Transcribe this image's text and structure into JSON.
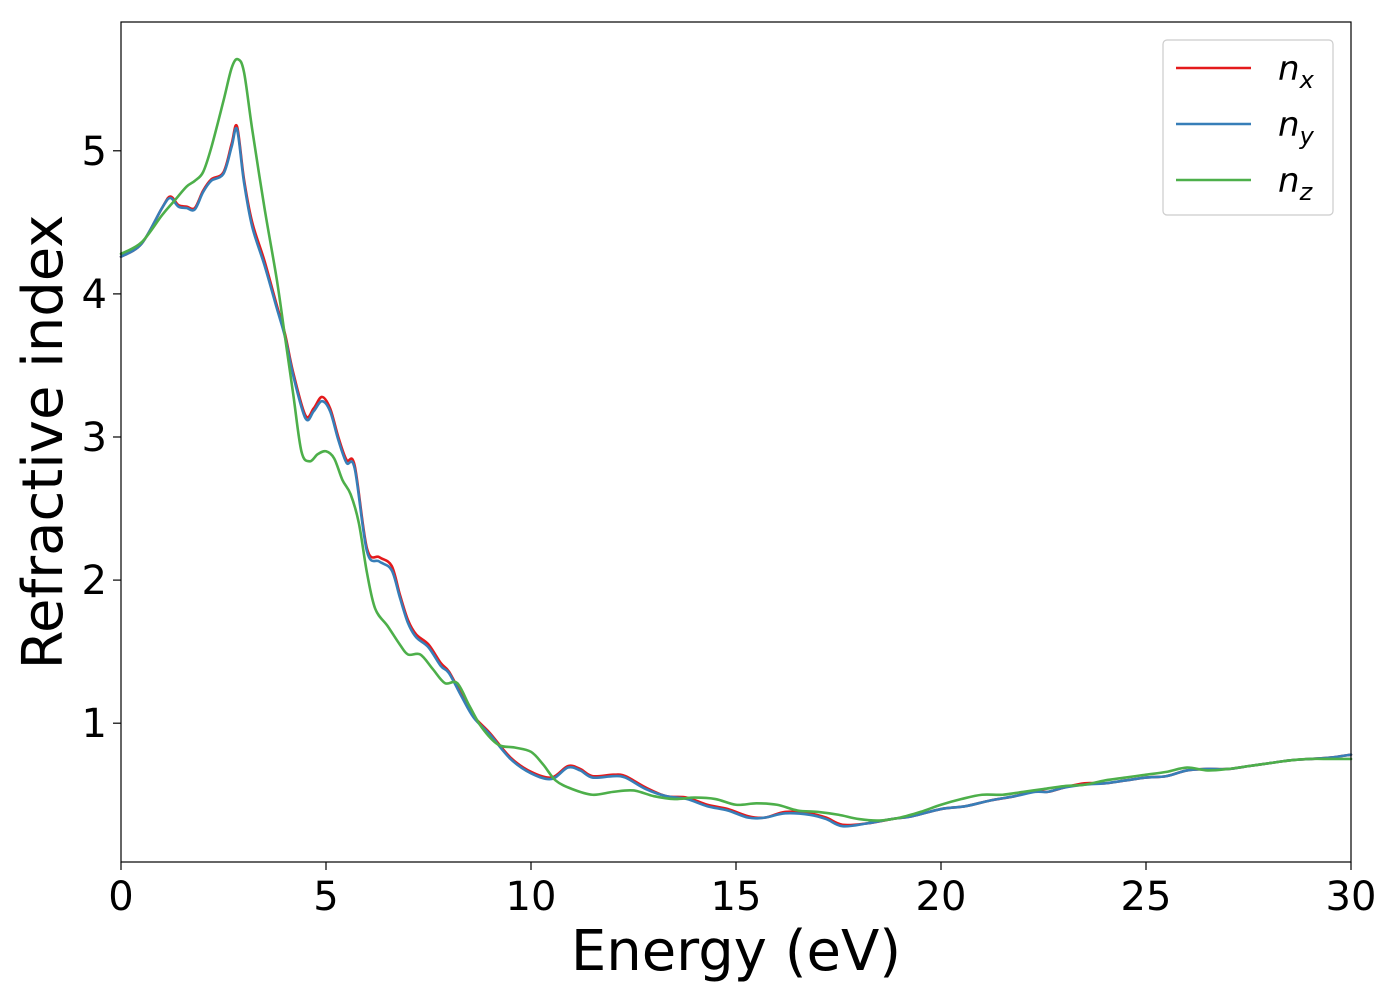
{
  "chart_data": {
    "type": "line",
    "title": "",
    "xlabel": "Energy (eV)",
    "ylabel": "Refractive index",
    "xlim": [
      0,
      30
    ],
    "ylim": [
      0.03,
      5.9
    ],
    "xticks": [
      0,
      5,
      10,
      15,
      20,
      25,
      30
    ],
    "yticks": [
      1,
      2,
      3,
      4,
      5
    ],
    "grid": false,
    "legend_position": "top-right",
    "series": [
      {
        "name": "n",
        "subscript": "x",
        "color": "#e41a1c",
        "x": [
          0,
          0.5,
          1.0,
          1.2,
          1.4,
          1.6,
          1.8,
          2.0,
          2.2,
          2.5,
          2.7,
          2.83,
          3.0,
          3.2,
          3.5,
          3.8,
          4.0,
          4.2,
          4.5,
          4.7,
          4.9,
          5.1,
          5.3,
          5.5,
          5.7,
          6.0,
          6.3,
          6.6,
          6.8,
          7.0,
          7.2,
          7.5,
          7.8,
          8.0,
          8.3,
          8.6,
          9.0,
          9.5,
          10.0,
          10.5,
          10.9,
          11.2,
          11.5,
          12.0,
          12.3,
          12.8,
          13.3,
          13.8,
          14.3,
          14.8,
          15.3,
          15.7,
          16.2,
          16.8,
          17.2,
          17.6,
          18.2,
          18.8,
          19.3,
          20.0,
          20.6,
          21.2,
          21.8,
          22.3,
          22.6,
          23.0,
          23.5,
          24.0,
          24.5,
          25.0,
          25.5,
          26.0,
          26.5,
          27.0,
          27.5,
          28.0,
          28.5,
          29.0,
          29.5,
          30.0
        ],
        "values": [
          4.26,
          4.35,
          4.6,
          4.68,
          4.62,
          4.61,
          4.6,
          4.72,
          4.8,
          4.85,
          5.05,
          5.17,
          4.8,
          4.5,
          4.23,
          3.92,
          3.72,
          3.45,
          3.15,
          3.2,
          3.28,
          3.2,
          3.0,
          2.84,
          2.8,
          2.22,
          2.16,
          2.1,
          1.9,
          1.72,
          1.62,
          1.55,
          1.42,
          1.36,
          1.2,
          1.05,
          0.93,
          0.76,
          0.66,
          0.62,
          0.7,
          0.68,
          0.63,
          0.64,
          0.63,
          0.55,
          0.49,
          0.48,
          0.43,
          0.4,
          0.35,
          0.34,
          0.38,
          0.37,
          0.34,
          0.29,
          0.3,
          0.33,
          0.35,
          0.4,
          0.42,
          0.46,
          0.49,
          0.53,
          0.52,
          0.55,
          0.58,
          0.58,
          0.6,
          0.62,
          0.63,
          0.67,
          0.68,
          0.68,
          0.7,
          0.72,
          0.74,
          0.75,
          0.76,
          0.78
        ]
      },
      {
        "name": "n",
        "subscript": "y",
        "color": "#377eb8",
        "x": [
          0,
          0.5,
          1.0,
          1.2,
          1.4,
          1.6,
          1.8,
          2.0,
          2.2,
          2.5,
          2.7,
          2.83,
          3.0,
          3.2,
          3.5,
          3.8,
          4.0,
          4.2,
          4.5,
          4.7,
          4.9,
          5.1,
          5.3,
          5.5,
          5.7,
          6.0,
          6.3,
          6.6,
          6.8,
          7.0,
          7.2,
          7.5,
          7.8,
          8.0,
          8.3,
          8.6,
          9.0,
          9.5,
          10.0,
          10.5,
          10.9,
          11.2,
          11.5,
          12.0,
          12.3,
          12.8,
          13.3,
          13.8,
          14.3,
          14.8,
          15.3,
          15.7,
          16.2,
          16.8,
          17.2,
          17.6,
          18.2,
          18.8,
          19.3,
          20.0,
          20.6,
          21.2,
          21.8,
          22.3,
          22.6,
          23.0,
          23.5,
          24.0,
          24.5,
          25.0,
          25.5,
          26.0,
          26.5,
          27.0,
          27.5,
          28.0,
          28.5,
          29.0,
          29.5,
          30.0
        ],
        "values": [
          4.26,
          4.35,
          4.6,
          4.67,
          4.61,
          4.6,
          4.59,
          4.71,
          4.79,
          4.84,
          5.03,
          5.15,
          4.78,
          4.47,
          4.2,
          3.9,
          3.7,
          3.43,
          3.13,
          3.18,
          3.25,
          3.18,
          2.98,
          2.82,
          2.78,
          2.2,
          2.13,
          2.07,
          1.88,
          1.7,
          1.6,
          1.53,
          1.4,
          1.35,
          1.19,
          1.04,
          0.92,
          0.75,
          0.65,
          0.61,
          0.69,
          0.67,
          0.62,
          0.63,
          0.62,
          0.54,
          0.49,
          0.47,
          0.42,
          0.39,
          0.34,
          0.34,
          0.37,
          0.36,
          0.33,
          0.28,
          0.3,
          0.33,
          0.35,
          0.4,
          0.42,
          0.46,
          0.49,
          0.52,
          0.52,
          0.55,
          0.57,
          0.58,
          0.6,
          0.62,
          0.63,
          0.67,
          0.68,
          0.68,
          0.7,
          0.72,
          0.74,
          0.75,
          0.76,
          0.78
        ]
      },
      {
        "name": "n",
        "subscript": "z",
        "color": "#4daf4a",
        "x": [
          0,
          0.5,
          1.0,
          1.3,
          1.6,
          1.8,
          2.0,
          2.2,
          2.5,
          2.7,
          2.85,
          3.0,
          3.2,
          3.5,
          3.8,
          4.0,
          4.2,
          4.4,
          4.6,
          4.8,
          5.0,
          5.2,
          5.4,
          5.6,
          5.8,
          6.0,
          6.2,
          6.5,
          6.8,
          7.0,
          7.3,
          7.6,
          7.9,
          8.2,
          8.5,
          8.8,
          9.2,
          9.6,
          10.0,
          10.3,
          10.6,
          11.0,
          11.5,
          12.0,
          12.5,
          13.0,
          13.5,
          14.0,
          14.5,
          15.0,
          15.5,
          16.0,
          16.5,
          17.0,
          17.5,
          18.0,
          18.5,
          19.0,
          19.5,
          20.0,
          20.5,
          21.0,
          21.5,
          22.0,
          22.5,
          23.0,
          23.5,
          24.0,
          24.5,
          25.0,
          25.5,
          26.0,
          26.5,
          27.0,
          27.5,
          28.0,
          28.5,
          29.0,
          29.5,
          30.0
        ],
        "values": [
          4.28,
          4.36,
          4.55,
          4.65,
          4.75,
          4.79,
          4.85,
          5.02,
          5.35,
          5.58,
          5.64,
          5.55,
          5.15,
          4.6,
          4.1,
          3.7,
          3.3,
          2.9,
          2.83,
          2.88,
          2.9,
          2.85,
          2.7,
          2.6,
          2.4,
          2.05,
          1.8,
          1.68,
          1.55,
          1.48,
          1.48,
          1.38,
          1.28,
          1.28,
          1.12,
          0.97,
          0.85,
          0.83,
          0.8,
          0.71,
          0.6,
          0.54,
          0.5,
          0.52,
          0.53,
          0.49,
          0.47,
          0.48,
          0.47,
          0.43,
          0.44,
          0.43,
          0.39,
          0.38,
          0.36,
          0.33,
          0.32,
          0.34,
          0.38,
          0.43,
          0.47,
          0.5,
          0.5,
          0.52,
          0.54,
          0.56,
          0.57,
          0.6,
          0.62,
          0.64,
          0.66,
          0.69,
          0.67,
          0.68,
          0.7,
          0.72,
          0.74,
          0.75,
          0.75,
          0.75
        ]
      }
    ]
  }
}
